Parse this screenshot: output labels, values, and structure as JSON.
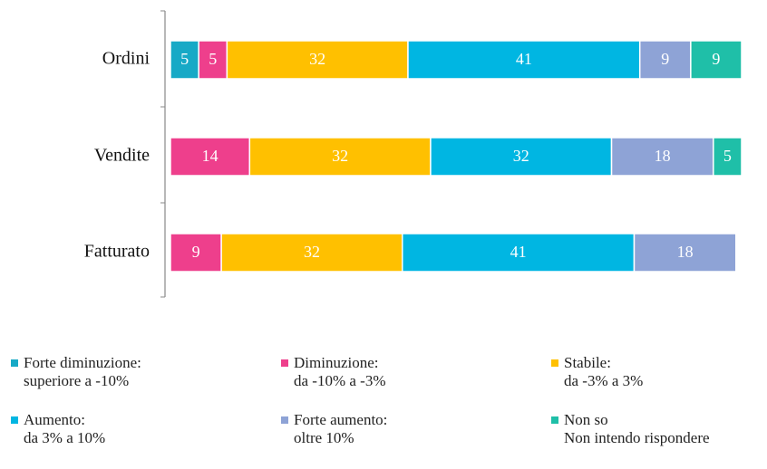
{
  "chart_data": {
    "type": "stacked-bar-horizontal",
    "categories": [
      "Ordini",
      "Vendite",
      "Fatturato"
    ],
    "series": [
      {
        "name": "Forte diminuzione:\nsuperiore a -10%",
        "color": "#17a9c6",
        "values": [
          5,
          null,
          null
        ]
      },
      {
        "name": "Diminuzione:\nda -10% a -3%",
        "color": "#ee3f8c",
        "values": [
          5,
          14,
          9
        ]
      },
      {
        "name": "Stabile:\nda -3% a 3%",
        "color": "#ffc000",
        "values": [
          32,
          32,
          32
        ]
      },
      {
        "name": "Aumento:\nda 3% a 10%",
        "color": "#00b6e2",
        "values": [
          41,
          32,
          41
        ]
      },
      {
        "name": "Forte aumento:\noltre 10%",
        "color": "#8ea3d6",
        "values": [
          9,
          18,
          18
        ]
      },
      {
        "name": "Non so\nNon intendo rispondere",
        "color": "#1fbfa8",
        "values": [
          9,
          5,
          null
        ]
      }
    ],
    "xlim": [
      0,
      101
    ]
  }
}
